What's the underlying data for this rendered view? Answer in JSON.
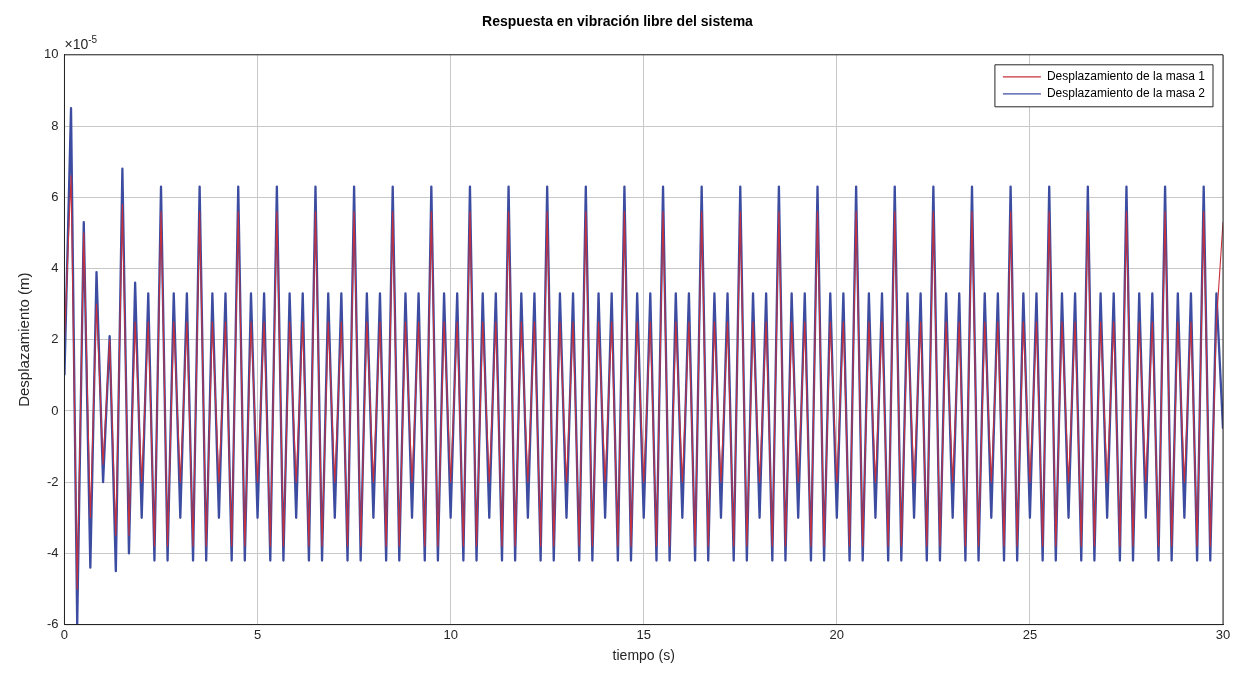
{
  "chart_data": {
    "type": "line",
    "title": "Respuesta en vibración libre del sistema",
    "xlabel": "tiempo (s)",
    "ylabel": "Desplazamiento (m)",
    "annotations": [
      "×10$^{-5}$"
    ],
    "x": [
      0,
      0.17,
      0.33,
      0.5,
      0.67,
      0.83,
      1,
      1.17,
      1.33,
      1.5,
      1.67,
      1.83,
      2,
      2.17,
      2.33,
      2.5,
      2.67,
      2.83,
      3,
      3.17,
      3.33,
      3.5,
      3.67,
      3.83,
      4,
      4.17,
      4.33,
      4.5,
      4.67,
      4.83,
      5,
      5.17,
      5.33,
      5.5,
      5.67,
      5.83,
      6,
      6.17,
      6.33,
      6.5,
      6.67,
      6.83,
      7,
      7.17,
      7.33,
      7.5,
      7.67,
      7.83,
      8,
      8.17,
      8.33,
      8.5,
      8.67,
      8.83,
      9,
      9.17,
      9.33,
      9.5,
      9.67,
      9.83,
      10,
      10.17,
      10.33,
      10.5,
      10.67,
      10.83,
      11,
      11.17,
      11.33,
      11.5,
      11.67,
      11.83,
      12,
      12.17,
      12.33,
      12.5,
      12.67,
      12.83,
      13,
      13.17,
      13.33,
      13.5,
      13.67,
      13.83,
      14,
      14.17,
      14.33,
      14.5,
      14.67,
      14.83,
      15,
      15.17,
      15.33,
      15.5,
      15.67,
      15.83,
      16,
      16.17,
      16.33,
      16.5,
      16.67,
      16.83,
      17,
      17.17,
      17.33,
      17.5,
      17.67,
      17.83,
      18,
      18.17,
      18.33,
      18.5,
      18.67,
      18.83,
      19,
      19.17,
      19.33,
      19.5,
      19.67,
      19.83,
      20,
      20.17,
      20.33,
      20.5,
      20.67,
      20.83,
      21,
      21.17,
      21.33,
      21.5,
      21.67,
      21.83,
      22,
      22.17,
      22.33,
      22.5,
      22.67,
      22.83,
      23,
      23.17,
      23.33,
      23.5,
      23.67,
      23.83,
      24,
      24.17,
      24.33,
      24.5,
      24.67,
      24.83,
      25,
      25.17,
      25.33,
      25.5,
      25.67,
      25.83,
      26,
      26.17,
      26.33,
      26.5,
      26.67,
      26.83,
      27,
      27.17,
      27.33,
      27.5,
      27.67,
      27.83,
      28,
      28.17,
      28.33,
      28.5,
      28.67,
      28.83,
      29,
      29.17,
      29.33,
      29.5,
      29.67,
      29.83,
      30
    ],
    "series": [
      {
        "name": "Desplazamiento de la masa 1",
        "color": "#c8303c",
        "values": [
          2,
          6.6,
          -5,
          5,
          -3,
          3,
          -1.5,
          2,
          -3.5,
          5.8,
          -3.5,
          2.5,
          -2,
          2.5,
          -3.8,
          5.6,
          -3.8,
          2.5,
          -2,
          2.5,
          -3.8,
          5.6,
          -3.8,
          2.5,
          -2,
          2.5,
          -3.8,
          5.6,
          -3.8,
          2.5,
          -2,
          2.5,
          -3.8,
          5.6,
          -3.8,
          2.5,
          -2,
          2.5,
          -3.8,
          5.6,
          -3.8,
          2.5,
          -2,
          2.5,
          -3.8,
          5.6,
          -3.8,
          2.5,
          -2,
          2.5,
          -3.8,
          5.6,
          -3.8,
          2.5,
          -2,
          2.5,
          -3.8,
          5.6,
          -3.8,
          2.5,
          -2,
          2.5,
          -3.8,
          5.6,
          -3.8,
          2.5,
          -2,
          2.5,
          -3.8,
          5.6,
          -3.8,
          2.5,
          -2,
          2.5,
          -3.8,
          5.6,
          -3.8,
          2.5,
          -2,
          2.5,
          -3.8,
          5.6,
          -3.8,
          2.5,
          -2,
          2.5,
          -3.8,
          5.6,
          -3.8,
          2.5,
          -2,
          2.5,
          -3.8,
          5.6,
          -3.8,
          2.5,
          -2,
          2.5,
          -3.8,
          5.6,
          -3.8,
          2.5,
          -2,
          2.5,
          -3.8,
          5.6,
          -3.8,
          2.5,
          -2,
          2.5,
          -3.8,
          5.6,
          -3.8,
          2.5,
          -2,
          2.5,
          -3.8,
          5.6,
          -3.8,
          2.5,
          -2,
          2.5,
          -3.8,
          5.6,
          -3.8,
          2.5,
          -2,
          2.5,
          -3.8,
          5.6,
          -3.8,
          2.5,
          -2,
          2.5,
          -3.8,
          5.6,
          -3.8,
          2.5,
          -2,
          2.5,
          -3.8,
          5.6,
          -3.8,
          2.5,
          -2,
          2.5,
          -3.8,
          5.6,
          -3.8,
          2.5,
          -2,
          2.5,
          -3.8,
          5.6,
          -3.8,
          2.5,
          -2,
          2.5,
          -3.8,
          5.6,
          -3.8,
          2.5,
          -2,
          2.5,
          -3.8,
          5.6,
          -3.8,
          2.5,
          -2,
          2.5,
          -3.8,
          5.6,
          -3.8,
          2.5,
          -2,
          2.5,
          -3.8,
          5.6,
          -3.8,
          2.5,
          5.3
        ]
      },
      {
        "name": "Desplazamiento de la masa 2",
        "color": "#3c4ca0",
        "values": [
          1,
          8.5,
          -6,
          5.3,
          -4.4,
          3.9,
          -2,
          2.1,
          -4.5,
          6.8,
          -4,
          3.6,
          -3,
          3.3,
          -4.2,
          6.3,
          -4.2,
          3.3,
          -3,
          3.3,
          -4.2,
          6.3,
          -4.2,
          3.3,
          -3,
          3.3,
          -4.2,
          6.3,
          -4.2,
          3.3,
          -3,
          3.3,
          -4.2,
          6.3,
          -4.2,
          3.3,
          -3,
          3.3,
          -4.2,
          6.3,
          -4.2,
          3.3,
          -3,
          3.3,
          -4.2,
          6.3,
          -4.2,
          3.3,
          -3,
          3.3,
          -4.2,
          6.3,
          -4.2,
          3.3,
          -3,
          3.3,
          -4.2,
          6.3,
          -4.2,
          3.3,
          -3,
          3.3,
          -4.2,
          6.3,
          -4.2,
          3.3,
          -3,
          3.3,
          -4.2,
          6.3,
          -4.2,
          3.3,
          -3,
          3.3,
          -4.2,
          6.3,
          -4.2,
          3.3,
          -3,
          3.3,
          -4.2,
          6.3,
          -4.2,
          3.3,
          -3,
          3.3,
          -4.2,
          6.3,
          -4.2,
          3.3,
          -3,
          3.3,
          -4.2,
          6.3,
          -4.2,
          3.3,
          -3,
          3.3,
          -4.2,
          6.3,
          -4.2,
          3.3,
          -3,
          3.3,
          -4.2,
          6.3,
          -4.2,
          3.3,
          -3,
          3.3,
          -4.2,
          6.3,
          -4.2,
          3.3,
          -3,
          3.3,
          -4.2,
          6.3,
          -4.2,
          3.3,
          -3,
          3.3,
          -4.2,
          6.3,
          -4.2,
          3.3,
          -3,
          3.3,
          -4.2,
          6.3,
          -4.2,
          3.3,
          -3,
          3.3,
          -4.2,
          6.3,
          -4.2,
          3.3,
          -3,
          3.3,
          -4.2,
          6.3,
          -4.2,
          3.3,
          -3,
          3.3,
          -4.2,
          6.3,
          -4.2,
          3.3,
          -3,
          3.3,
          -4.2,
          6.3,
          -4.2,
          3.3,
          -3,
          3.3,
          -4.2,
          6.3,
          -4.2,
          3.3,
          -3,
          3.3,
          -4.2,
          6.3,
          -4.2,
          3.3,
          -3,
          3.3,
          -4.2,
          6.3,
          -4.2,
          3.3,
          -3,
          3.3,
          -4.2,
          6.3,
          -4.2,
          3.3,
          -0.5
        ]
      }
    ],
    "xlim": [
      0,
      30
    ],
    "xticks": [
      0,
      5,
      10,
      15,
      20,
      25,
      30
    ],
    "ylim": [
      -6,
      10
    ],
    "yticks": [
      -6,
      -4,
      -2,
      0,
      2,
      4,
      6,
      8,
      10
    ],
    "grid": true,
    "legend": "top right",
    "marker": "none",
    "line_style": "solid"
  }
}
